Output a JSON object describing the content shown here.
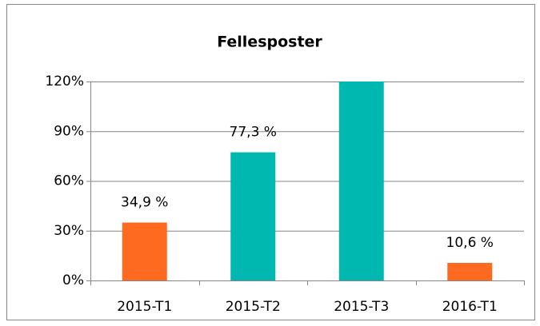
{
  "chart_data": {
    "type": "bar",
    "title": "Fellesposter",
    "categories": [
      "2015-T1",
      "2015-T2",
      "2015-T3",
      "2016-T1"
    ],
    "values": [
      34.9,
      77.3,
      120,
      10.6
    ],
    "value_labels": [
      "34,9 %",
      "77,3 %",
      null,
      "10,6 %"
    ],
    "colors": [
      "#ff6a21",
      "#00b8b0",
      "#00b8b0",
      "#ff6a21"
    ],
    "ylim": [
      0,
      120
    ],
    "yticks": [
      {
        "value": 0,
        "label": "0%"
      },
      {
        "value": 30,
        "label": "30%"
      },
      {
        "value": 60,
        "label": "60%"
      },
      {
        "value": 90,
        "label": "90%"
      },
      {
        "value": 120,
        "label": "120%"
      }
    ],
    "grid": true
  }
}
